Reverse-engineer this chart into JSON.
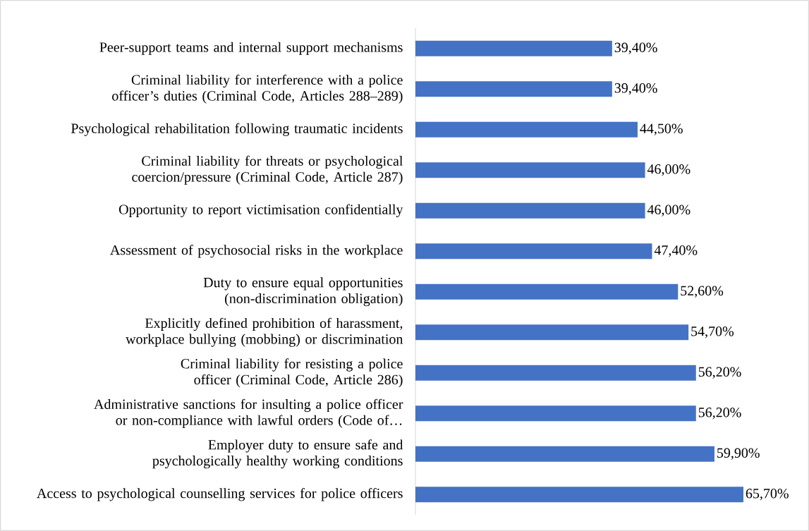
{
  "chart_data": {
    "type": "bar",
    "orientation": "horizontal",
    "color": "#4472c4",
    "categories": [
      "Peer-support teams and internal support mechanisms",
      "Criminal liability for interference with a police officer’s duties (Criminal Code, Articles 288–289)",
      "Psychological rehabilitation following traumatic incidents",
      "Criminal liability for threats or psychological coercion/pressure (Criminal Code, Article 287)",
      "Opportunity to report victimisation confidentially",
      "Assessment of psychosocial risks in the workplace",
      "Duty to ensure equal opportunities (non-discrimination obligation)",
      "Explicitly defined prohibition of harassment, workplace bullying (mobbing) or discrimination",
      "Criminal liability for resisting a police officer (Criminal Code, Article 286)",
      "Administrative sanctions for insulting a police officer or non-compliance with lawful orders (Code of…",
      "Employer duty to ensure safe and psychologically healthy working conditions",
      "Access to psychological counselling services for police officers"
    ],
    "values": [
      39.4,
      39.4,
      44.5,
      46.0,
      46.0,
      47.4,
      52.6,
      54.7,
      56.2,
      56.2,
      59.9,
      65.7
    ],
    "value_labels": [
      "39,40%",
      "39,40%",
      "44,50%",
      "46,00%",
      "46,00%",
      "47,40%",
      "52,60%",
      "54,70%",
      "56,20%",
      "56,20%",
      "59,90%",
      "65,70%"
    ]
  }
}
